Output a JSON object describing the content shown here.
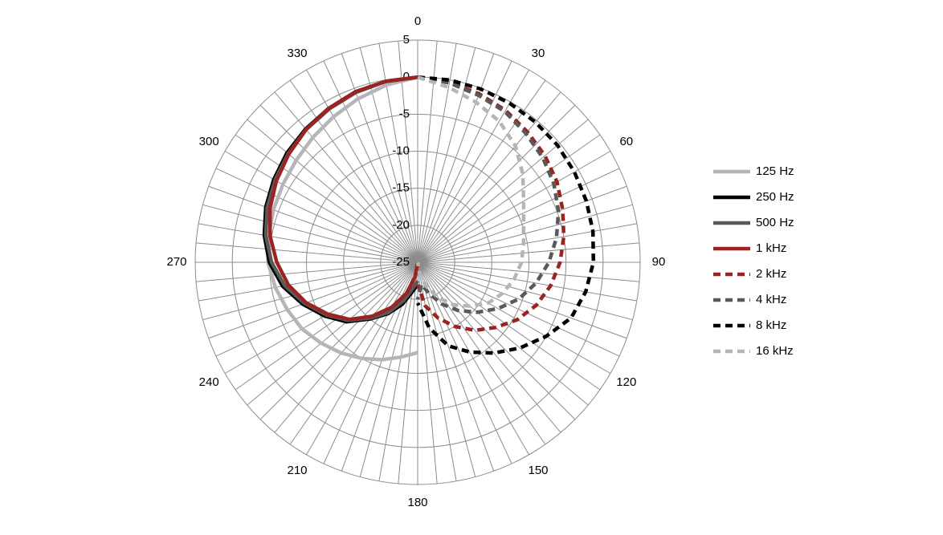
{
  "chart_data": {
    "type": "polar",
    "rlim": [
      -25,
      5
    ],
    "rticks": [
      -25,
      -20,
      -15,
      -10,
      -5,
      0,
      5
    ],
    "thetaticks": [
      0,
      30,
      60,
      90,
      120,
      150,
      180,
      210,
      240,
      270,
      300,
      330
    ],
    "thetagrid": [
      0,
      5,
      10,
      15,
      20,
      25,
      30,
      35,
      40,
      45,
      50,
      55,
      60,
      65,
      70,
      75,
      80,
      85,
      90,
      95,
      100,
      105,
      110,
      115,
      120,
      125,
      130,
      135,
      140,
      145,
      150,
      155,
      160,
      165,
      170,
      175,
      180,
      185,
      190,
      195,
      200,
      205,
      210,
      215,
      220,
      225,
      230,
      235,
      240,
      245,
      250,
      255,
      260,
      265,
      270,
      275,
      280,
      285,
      290,
      295,
      300,
      305,
      310,
      315,
      320,
      325,
      330,
      335,
      340,
      345,
      350,
      355
    ],
    "grid": true,
    "legend": "right",
    "series": [
      {
        "name": "125 Hz",
        "color": "#b5b5b9",
        "dashed": false,
        "x": [
          180,
          190,
          200,
          210,
          220,
          230,
          240,
          250,
          260,
          270,
          280,
          290,
          300,
          310,
          320,
          330,
          340,
          350,
          360
        ],
        "values": [
          -12.8,
          -12,
          -11,
          -10,
          -9,
          -8,
          -7,
          -6.3,
          -5.5,
          -4.8,
          -4.6,
          -4.3,
          -4,
          -3.6,
          -3,
          -2.3,
          -1.5,
          -0.7,
          0
        ]
      },
      {
        "name": "250 Hz",
        "color": "#000000",
        "dashed": false,
        "x": [
          180,
          190,
          200,
          210,
          220,
          230,
          240,
          250,
          260,
          270,
          280,
          290,
          300,
          310,
          320,
          330,
          340,
          350,
          360
        ],
        "values": [
          -22,
          -21,
          -19,
          -17,
          -15,
          -12.5,
          -10.5,
          -8.5,
          -6.5,
          -5,
          -4,
          -3.2,
          -2.6,
          -2,
          -1.5,
          -1,
          -0.5,
          -0.2,
          0
        ]
      },
      {
        "name": "500 Hz",
        "color": "#595959",
        "dashed": false,
        "x": [
          180,
          190,
          200,
          210,
          220,
          230,
          240,
          250,
          260,
          270,
          280,
          290,
          300,
          310,
          320,
          330,
          340,
          350,
          360
        ],
        "values": [
          -22.5,
          -21.5,
          -19.5,
          -17.2,
          -15.2,
          -12.8,
          -10.8,
          -8.8,
          -6.8,
          -5.3,
          -4.2,
          -3.4,
          -2.8,
          -2.2,
          -1.6,
          -1.1,
          -0.6,
          -0.2,
          0
        ]
      },
      {
        "name": "1 kHz",
        "color": "#9b2423",
        "dashed": false,
        "x": [
          180,
          190,
          200,
          210,
          220,
          230,
          240,
          250,
          260,
          270,
          280,
          290,
          300,
          310,
          320,
          330,
          340,
          350,
          360
        ],
        "values": [
          -25,
          -23,
          -20.5,
          -18,
          -15.5,
          -13,
          -11,
          -9,
          -7.3,
          -6,
          -4.8,
          -3.8,
          -3,
          -2.3,
          -1.6,
          -1,
          -0.5,
          -0.2,
          0
        ]
      },
      {
        "name": "2 kHz",
        "color": "#9b2423",
        "dashed": true,
        "x": [
          0,
          10,
          20,
          30,
          40,
          50,
          60,
          70,
          80,
          90,
          100,
          110,
          120,
          130,
          140,
          150,
          160,
          170,
          180
        ],
        "values": [
          0,
          -0.3,
          -0.8,
          -1.3,
          -2,
          -2.6,
          -3.3,
          -4.2,
          -5,
          -5.8,
          -6.8,
          -8,
          -9.5,
          -11.3,
          -13,
          -15,
          -17,
          -19,
          -22
        ]
      },
      {
        "name": "4 kHz",
        "color": "#595959",
        "dashed": true,
        "x": [
          0,
          10,
          20,
          30,
          40,
          50,
          60,
          70,
          80,
          90,
          100,
          110,
          120,
          130,
          140,
          150,
          160,
          170,
          180
        ],
        "values": [
          0,
          -0.4,
          -1,
          -1.5,
          -2.3,
          -3,
          -3.8,
          -4.8,
          -6,
          -7.3,
          -8.8,
          -10.5,
          -12.5,
          -14.5,
          -16.5,
          -18.5,
          -20.5,
          -22,
          -20
        ]
      },
      {
        "name": "8 kHz",
        "color": "#000000",
        "dashed": true,
        "x": [
          0,
          10,
          20,
          30,
          40,
          50,
          60,
          70,
          80,
          90,
          100,
          110,
          120,
          130,
          140,
          150,
          160,
          170,
          180
        ],
        "values": [
          0,
          0,
          -0.1,
          -0.2,
          -0.3,
          -0.4,
          -0.6,
          -0.8,
          -1,
          -1.3,
          -2,
          -3,
          -5,
          -7,
          -9,
          -11,
          -13,
          -16,
          -19.5
        ]
      },
      {
        "name": "16 kHz",
        "color": "#b5b5b9",
        "dashed": true,
        "x": [
          0,
          10,
          20,
          30,
          40,
          50,
          60,
          70,
          80,
          90,
          100,
          110,
          120,
          130,
          140,
          150,
          160,
          170,
          180
        ],
        "values": [
          0,
          -1,
          -2,
          -3,
          -4.5,
          -6.5,
          -8.5,
          -9.8,
          -10.5,
          -11,
          -11.8,
          -12.8,
          -14,
          -15.8,
          -17.5,
          -19.5,
          -21.5,
          -23,
          -25
        ]
      }
    ]
  }
}
